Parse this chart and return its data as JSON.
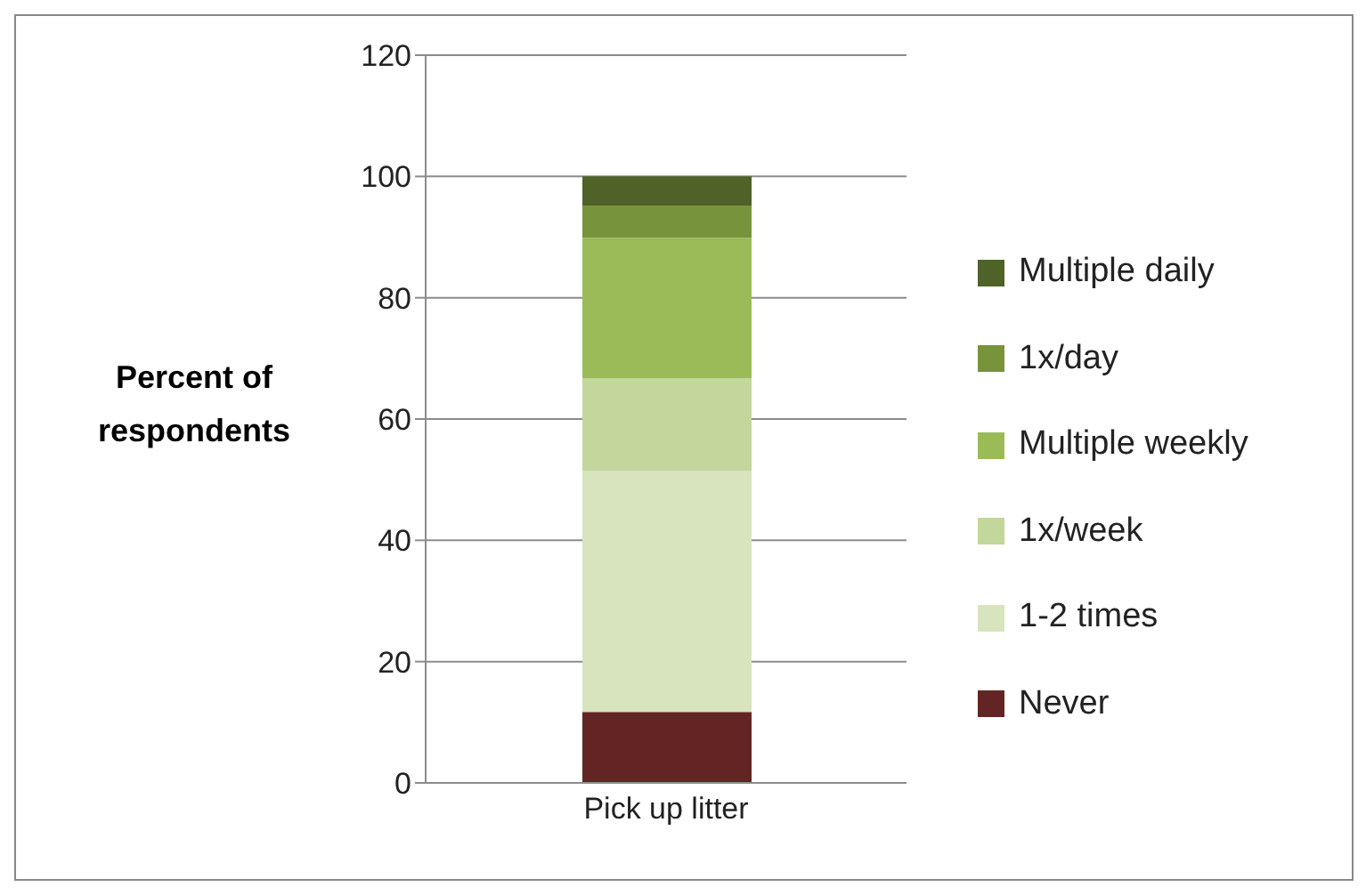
{
  "chart_data": {
    "type": "bar",
    "stacked": true,
    "ylabel": "Percent of respondents",
    "categories": [
      "Pick up litter"
    ],
    "series": [
      {
        "name": "Never",
        "color": "#632523",
        "values": [
          11.7
        ]
      },
      {
        "name": "1-2 times",
        "color": "#d7e4bd",
        "values": [
          39.7
        ]
      },
      {
        "name": "1x/week",
        "color": "#c3d69b",
        "values": [
          15.3
        ]
      },
      {
        "name": "Multiple weekly",
        "color": "#9bbb59",
        "values": [
          23.2
        ]
      },
      {
        "name": "1x/day",
        "color": "#77933c",
        "values": [
          5.3
        ]
      },
      {
        "name": "Multiple daily",
        "color": "#4f6228",
        "values": [
          4.8
        ]
      }
    ],
    "ylim": [
      0,
      120
    ],
    "yticks": [
      0,
      20,
      40,
      60,
      80,
      100,
      120
    ],
    "grid": "y",
    "legend": "right"
  }
}
